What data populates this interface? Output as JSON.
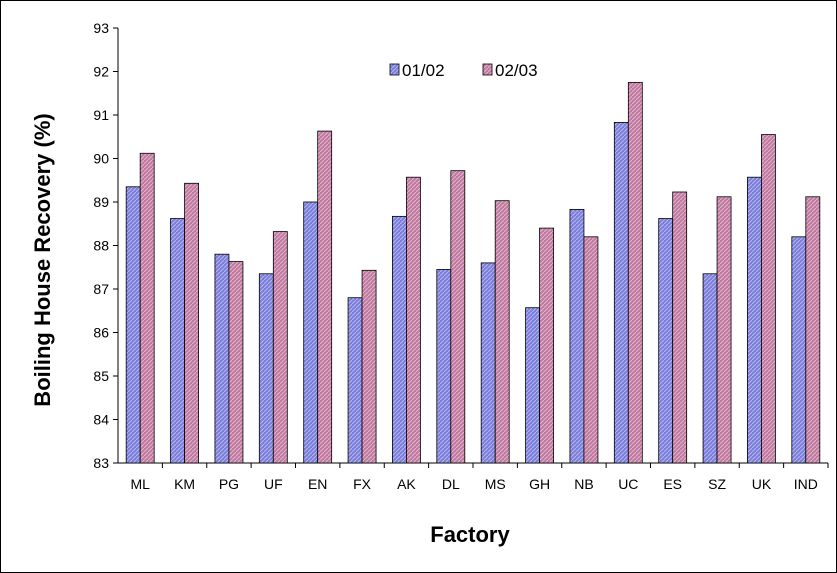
{
  "chart_data": {
    "type": "bar",
    "xlabel": "Factory",
    "ylabel": "Boiling House Recovery (%)",
    "ylim": [
      83,
      93
    ],
    "ytick_step": 1,
    "grid": false,
    "legend_position": "top-center",
    "categories": [
      "ML",
      "KM",
      "PG",
      "UF",
      "EN",
      "FX",
      "AK",
      "DL",
      "MS",
      "GH",
      "NB",
      "UC",
      "ES",
      "SZ",
      "UK",
      "IND"
    ],
    "series": [
      {
        "name": "01/02",
        "color": "#7b7fdb",
        "values": [
          89.35,
          88.62,
          87.8,
          87.35,
          89.0,
          86.8,
          88.67,
          87.45,
          87.6,
          86.57,
          88.83,
          90.83,
          88.62,
          87.35,
          89.57,
          88.2
        ]
      },
      {
        "name": "02/03",
        "color": "#c07aa0",
        "values": [
          90.12,
          89.43,
          87.63,
          88.32,
          90.63,
          87.43,
          89.57,
          89.72,
          89.03,
          88.4,
          88.2,
          91.75,
          89.23,
          89.12,
          90.55,
          89.12
        ]
      }
    ]
  }
}
